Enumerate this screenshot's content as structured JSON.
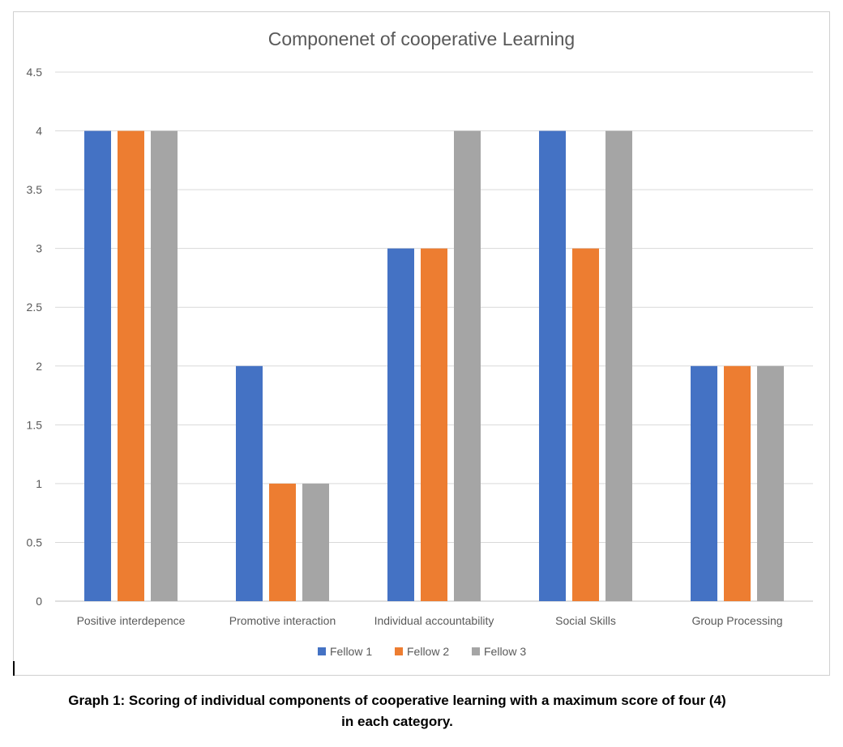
{
  "chart_data": {
    "type": "bar",
    "title": "Componenet of cooperative Learning",
    "xlabel": "",
    "ylabel": "",
    "ylim": [
      0,
      4.5
    ],
    "yticks": [
      "0",
      "0.5",
      "1",
      "1.5",
      "2",
      "2.5",
      "3",
      "3.5",
      "4",
      "4.5"
    ],
    "grid": true,
    "legend_position": "bottom",
    "categories": [
      "Positive interdepence",
      "Promotive interaction",
      "Individual accountability",
      "Social Skills",
      "Group Processing"
    ],
    "series": [
      {
        "name": "Fellow 1",
        "color": "#4472C4",
        "values": [
          4,
          2,
          3,
          4,
          2
        ]
      },
      {
        "name": "Fellow 2",
        "color": "#ED7D31",
        "values": [
          4,
          1,
          3,
          3,
          2
        ]
      },
      {
        "name": "Fellow 3",
        "color": "#A5A5A5",
        "values": [
          4,
          1,
          4,
          4,
          2
        ]
      }
    ]
  },
  "caption": {
    "line1": "Graph 1: Scoring of individual components of cooperative learning with a maximum score of four (4)",
    "line2": "in each category."
  }
}
